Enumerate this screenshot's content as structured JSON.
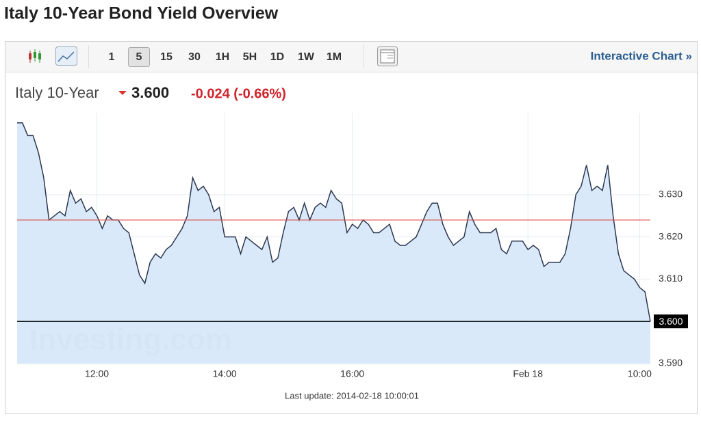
{
  "header": {
    "title": "Italy 10-Year Bond Yield Overview"
  },
  "toolbar": {
    "intervals": [
      "1",
      "5",
      "15",
      "30",
      "1H",
      "5H",
      "1D",
      "1W",
      "1M"
    ],
    "selected": "5",
    "link": "Interactive Chart »"
  },
  "quote": {
    "name": "Italy 10-Year",
    "price": "3.600",
    "change": "-0.024 (-0.66%)"
  },
  "chart_data": {
    "type": "line",
    "watermark": "Investing.com",
    "footer": "Last update: 2014-02-18 10:00:01",
    "values": [
      3.647,
      3.647,
      3.644,
      3.644,
      3.64,
      3.634,
      3.624,
      3.625,
      3.626,
      3.625,
      3.631,
      3.628,
      3.629,
      3.626,
      3.627,
      3.625,
      3.622,
      3.625,
      3.624,
      3.624,
      3.622,
      3.621,
      3.616,
      3.611,
      3.609,
      3.614,
      3.616,
      3.615,
      3.617,
      3.618,
      3.62,
      3.622,
      3.625,
      3.634,
      3.631,
      3.632,
      3.63,
      3.626,
      3.627,
      3.62,
      3.62,
      3.62,
      3.616,
      3.62,
      3.619,
      3.618,
      3.617,
      3.62,
      3.614,
      3.615,
      3.621,
      3.626,
      3.627,
      3.624,
      3.628,
      3.624,
      3.627,
      3.628,
      3.627,
      3.631,
      3.629,
      3.628,
      3.621,
      3.623,
      3.622,
      3.624,
      3.623,
      3.621,
      3.621,
      3.622,
      3.623,
      3.619,
      3.618,
      3.618,
      3.619,
      3.62,
      3.623,
      3.626,
      3.628,
      3.628,
      3.623,
      3.62,
      3.618,
      3.619,
      3.62,
      3.626,
      3.623,
      3.621,
      3.621,
      3.621,
      3.622,
      3.617,
      3.616,
      3.619,
      3.619,
      3.619,
      3.617,
      3.618,
      3.617,
      3.613,
      3.614,
      3.614,
      3.614,
      3.616,
      3.622,
      3.63,
      3.632,
      3.637,
      3.631,
      3.632,
      3.631,
      3.637,
      3.625,
      3.616,
      3.612,
      3.611,
      3.61,
      3.608,
      3.607,
      3.6
    ],
    "line_color": "#2b3650",
    "area_color": "#d6e7f8",
    "xlim": [
      0,
      119
    ],
    "xticks": [
      {
        "value": 15,
        "label": "12:00"
      },
      {
        "value": 39,
        "label": "14:00"
      },
      {
        "value": 63,
        "label": "16:00"
      },
      {
        "value": 96,
        "label": "Feb 18"
      },
      {
        "value": 117,
        "label": "10:00"
      }
    ],
    "ylim": [
      3.59,
      3.6494
    ],
    "yticks": [
      {
        "value": 3.59,
        "label": "3.590"
      },
      {
        "value": 3.61,
        "label": "3.610"
      },
      {
        "value": 3.62,
        "label": "3.620"
      },
      {
        "value": 3.63,
        "label": "3.630"
      }
    ],
    "grid": true,
    "reference_lines": [
      {
        "value": 3.624,
        "color": "#d9534f"
      },
      {
        "value": 3.6,
        "label": "3.600",
        "color": "#000000"
      }
    ]
  }
}
